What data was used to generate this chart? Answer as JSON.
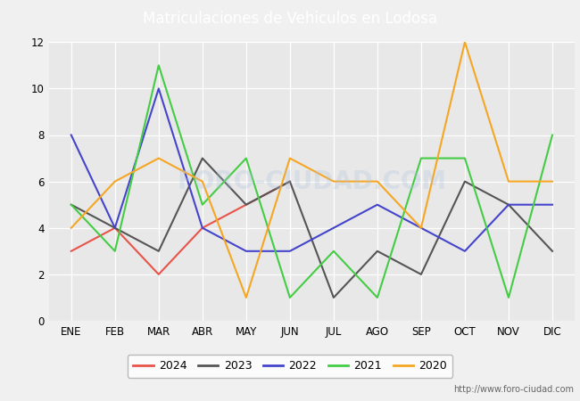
{
  "title": "Matriculaciones de Vehiculos en Lodosa",
  "header_color": "#4472c4",
  "background_plot": "#e8e8e8",
  "background_fig": "#f0f0f0",
  "months": [
    "ENE",
    "FEB",
    "MAR",
    "ABR",
    "MAY",
    "JUN",
    "JUL",
    "AGO",
    "SEP",
    "OCT",
    "NOV",
    "DIC"
  ],
  "series": {
    "2024": {
      "values": [
        3,
        4,
        2,
        4,
        5,
        6,
        null,
        null,
        null,
        null,
        null,
        null
      ],
      "color": "#e8534a",
      "label": "2024"
    },
    "2023": {
      "values": [
        5,
        4,
        3,
        7,
        5,
        6,
        1,
        3,
        2,
        6,
        5,
        3
      ],
      "color": "#555555",
      "label": "2023"
    },
    "2022": {
      "values": [
        8,
        4,
        10,
        4,
        3,
        3,
        4,
        5,
        4,
        3,
        5,
        5
      ],
      "color": "#4444cc",
      "label": "2022"
    },
    "2021": {
      "values": [
        5,
        3,
        11,
        5,
        7,
        1,
        3,
        1,
        7,
        7,
        1,
        8
      ],
      "color": "#44cc44",
      "label": "2021"
    },
    "2020": {
      "values": [
        4,
        6,
        7,
        6,
        1,
        7,
        6,
        6,
        4,
        12,
        6,
        6
      ],
      "color": "#f5a623",
      "label": "2020"
    }
  },
  "ylim": [
    0,
    12
  ],
  "yticks": [
    0,
    2,
    4,
    6,
    8,
    10,
    12
  ],
  "watermark": "FORO-CIUDAD.COM",
  "url": "http://www.foro-ciudad.com",
  "legend_order": [
    "2024",
    "2023",
    "2022",
    "2021",
    "2020"
  ]
}
